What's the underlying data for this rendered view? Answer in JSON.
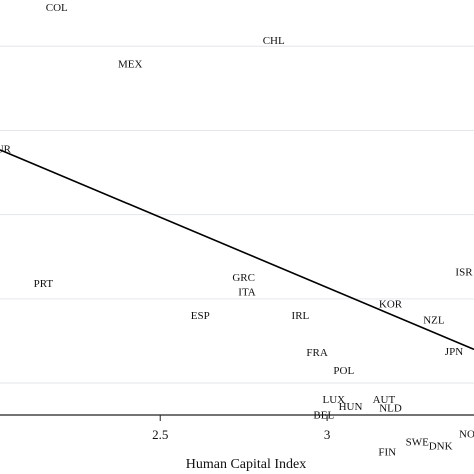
{
  "chart_data": {
    "type": "scatter",
    "title": "",
    "xlabel": "Human Capital Index",
    "ylabel": "",
    "xlim": [
      2.02,
      3.44
    ],
    "x_ticks": [
      2.5,
      3
    ],
    "x_tick_labels": [
      "2.5",
      "3"
    ],
    "grid": "horizontal",
    "grid_y": [
      1,
      2,
      3,
      4,
      5
    ],
    "y_top_value": 5.55,
    "y_bottom_value": 0.62,
    "points": [
      {
        "label": "COL",
        "x": 2.19,
        "y": 5.45
      },
      {
        "label": "CHL",
        "x": 2.84,
        "y": 5.06
      },
      {
        "label": "MEX",
        "x": 2.41,
        "y": 4.78
      },
      {
        "label": "TUR",
        "x": 2.02,
        "y": 3.77
      },
      {
        "label": "PRT",
        "x": 2.15,
        "y": 2.17
      },
      {
        "label": "GRC",
        "x": 2.75,
        "y": 2.24
      },
      {
        "label": "ITA",
        "x": 2.76,
        "y": 2.07
      },
      {
        "label": "ISR",
        "x": 3.41,
        "y": 2.31
      },
      {
        "label": "KOR",
        "x": 3.19,
        "y": 1.93
      },
      {
        "label": "ESP",
        "x": 2.62,
        "y": 1.79
      },
      {
        "label": "IRL",
        "x": 2.92,
        "y": 1.79
      },
      {
        "label": "NZL",
        "x": 3.32,
        "y": 1.74
      },
      {
        "label": "FRA",
        "x": 2.97,
        "y": 1.35
      },
      {
        "label": "JPN",
        "x": 3.38,
        "y": 1.36
      },
      {
        "label": "POL",
        "x": 3.05,
        "y": 1.14
      },
      {
        "label": "LUX",
        "x": 3.02,
        "y": 0.79
      },
      {
        "label": "AUT",
        "x": 3.17,
        "y": 0.79
      },
      {
        "label": "HUN",
        "x": 3.07,
        "y": 0.71
      },
      {
        "label": "NLD",
        "x": 3.19,
        "y": 0.69
      },
      {
        "label": "BEL",
        "x": 2.99,
        "y": 0.61
      },
      {
        "label": "SWE",
        "x": 3.27,
        "y": 0.29
      },
      {
        "label": "NOR",
        "x": 3.43,
        "y": 0.38
      },
      {
        "label": "DNK",
        "x": 3.34,
        "y": 0.24
      },
      {
        "label": "FIN",
        "x": 3.18,
        "y": 0.17
      }
    ],
    "fit_line": {
      "x": [
        2.02,
        3.44
      ],
      "y": [
        3.77,
        1.4
      ]
    }
  }
}
